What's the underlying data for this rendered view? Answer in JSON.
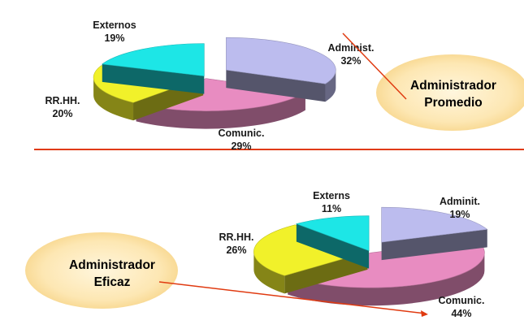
{
  "colors": {
    "admin": "#bcbcee",
    "comunic": "#e88cc1",
    "rrhh": "#f1f12a",
    "externos": "#1de6e6",
    "divider": "#e03a10",
    "arrow": "#e03a10",
    "bubble": "#fde3a6"
  },
  "bubbles": {
    "top": [
      "Administrador",
      "Promedio"
    ],
    "bottom": [
      "Administrador",
      "Eficaz"
    ]
  },
  "chart_data": [
    {
      "type": "pie",
      "name": "promedio",
      "categories": [
        "Administ.",
        "Comunic.",
        "RR.HH.",
        "Externos"
      ],
      "values": [
        32,
        29,
        20,
        19
      ],
      "value_labels": [
        "32%",
        "29%",
        "20%",
        "19%"
      ],
      "exploded_slice": "Administ.",
      "style": "3d exploded pie"
    },
    {
      "type": "pie",
      "name": "eficaz",
      "categories": [
        "Adminit.",
        "Comunic.",
        "RR.HH.",
        "Externs"
      ],
      "values": [
        19,
        44,
        26,
        11
      ],
      "value_labels": [
        "19%",
        "44%",
        "26%",
        "11%"
      ],
      "exploded_slice": "Adminit.",
      "style": "3d exploded pie"
    }
  ]
}
